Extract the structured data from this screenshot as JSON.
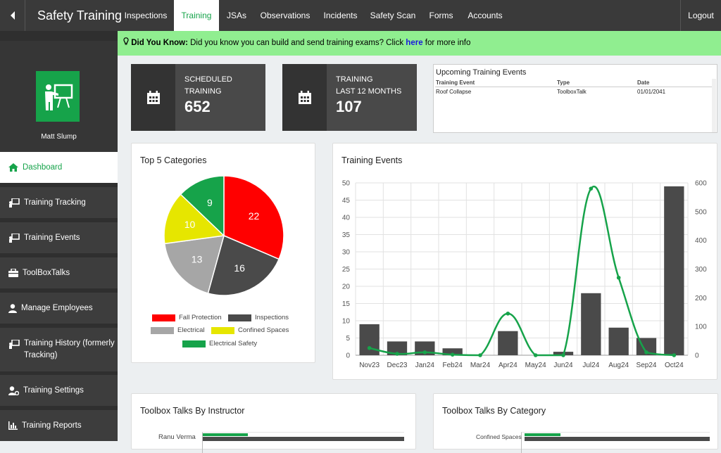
{
  "app": {
    "title": "Safety Training"
  },
  "nav": [
    {
      "label": "Inspections"
    },
    {
      "label": "Training"
    },
    {
      "label": "JSAs"
    },
    {
      "label": "Observations"
    },
    {
      "label": "Incidents"
    },
    {
      "label": "Safety Scan"
    },
    {
      "label": "Forms"
    },
    {
      "label": "Accounts"
    }
  ],
  "logout": "Logout",
  "user": {
    "name": "Matt Slump"
  },
  "sidebar": [
    {
      "label": "Dashboard"
    },
    {
      "label": "Training Tracking"
    },
    {
      "label": "Training Events"
    },
    {
      "label": "ToolBoxTalks"
    },
    {
      "label": "Manage Employees"
    },
    {
      "label": "Training History (formerly Tracking)"
    },
    {
      "label": "Training Settings"
    },
    {
      "label": "Training Reports"
    }
  ],
  "banner": {
    "lead": "Did You Know:",
    "text": " Did you know you can build and send training exams? Click ",
    "link": "here",
    "tail": " for more info"
  },
  "stats": [
    {
      "line1": "SCHEDULED",
      "line2": "TRAINING",
      "value": "652"
    },
    {
      "line1": "TRAINING",
      "line2": "LAST 12 MONTHS",
      "value": "107"
    }
  ],
  "upcoming": {
    "title": "Upcoming Training Events",
    "headers": [
      "Training Event",
      "Type",
      "Date"
    ],
    "rows": [
      [
        "Roof Collapse",
        "ToolboxTalk",
        "01/01/2041"
      ]
    ]
  },
  "panels": {
    "pie_title": "Top 5 Categories",
    "events_title": "Training Events",
    "instructor_title": "Toolbox Talks By Instructor",
    "category_title": "Toolbox Talks By Category",
    "instructor_first": "Ranu Verma",
    "category_first": "Confined Spaces"
  },
  "chart_data": [
    {
      "type": "pie",
      "labels": [
        "Fall Protection",
        "Inspections",
        "Electrical",
        "Confined Spaces",
        "Electrical Safety"
      ],
      "values": [
        22,
        16,
        13,
        10,
        9
      ],
      "colors": [
        "#ff0000",
        "#4a4a4a",
        "#a6a6a6",
        "#e6e600",
        "#16a34a"
      ],
      "legend_position": "bottom"
    },
    {
      "type": "bar",
      "categories": [
        "Nov23",
        "Dec23",
        "Jan24",
        "Feb24",
        "Mar24",
        "Apr24",
        "May24",
        "Jun24",
        "Jul24",
        "Aug24",
        "Sep24",
        "Oct24"
      ],
      "series": [
        {
          "type": "bar",
          "axis": "left",
          "values": [
            9,
            4,
            4,
            2,
            0,
            7,
            0,
            1,
            18,
            8,
            5,
            49
          ],
          "color": "#4a4a4a"
        },
        {
          "type": "line",
          "axis": "right",
          "values": [
            25,
            5,
            10,
            2,
            0,
            145,
            0,
            0,
            580,
            270,
            10,
            0
          ],
          "color": "#16a34a"
        }
      ],
      "ylim": [
        0,
        50
      ],
      "yticks": [
        0,
        5,
        10,
        15,
        20,
        25,
        30,
        35,
        40,
        45,
        50
      ],
      "y2lim": [
        0,
        600
      ],
      "y2ticks": [
        0,
        100,
        200,
        300,
        400,
        500,
        600
      ],
      "grid": true
    }
  ]
}
